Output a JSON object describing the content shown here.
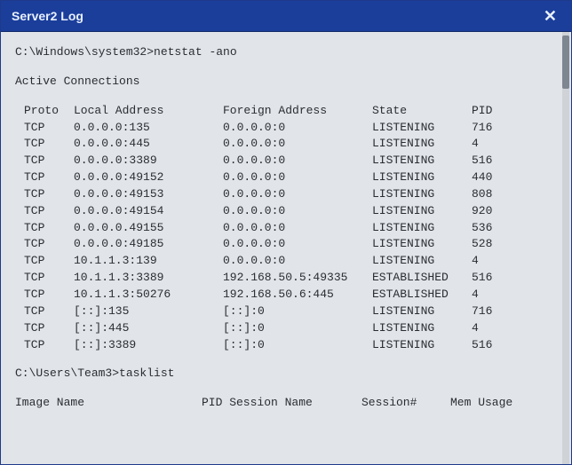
{
  "window": {
    "title": "Server2 Log",
    "close_glyph": "✕"
  },
  "prompt1": {
    "path": "C:\\Windows\\system32>",
    "cmd": "netstat -ano"
  },
  "netstat": {
    "heading": "Active Connections",
    "columns": {
      "proto": "Proto",
      "local": "Local Address",
      "foreign": "Foreign Address",
      "state": "State",
      "pid": "PID"
    },
    "rows": [
      {
        "proto": "TCP",
        "local": "0.0.0.0:135",
        "foreign": "0.0.0.0:0",
        "state": "LISTENING",
        "pid": "716"
      },
      {
        "proto": "TCP",
        "local": "0.0.0.0:445",
        "foreign": "0.0.0.0:0",
        "state": "LISTENING",
        "pid": "4"
      },
      {
        "proto": "TCP",
        "local": "0.0.0.0:3389",
        "foreign": "0.0.0.0:0",
        "state": "LISTENING",
        "pid": "516"
      },
      {
        "proto": "TCP",
        "local": "0.0.0.0:49152",
        "foreign": "0.0.0.0:0",
        "state": "LISTENING",
        "pid": "440"
      },
      {
        "proto": "TCP",
        "local": "0.0.0.0:49153",
        "foreign": "0.0.0.0:0",
        "state": "LISTENING",
        "pid": "808"
      },
      {
        "proto": "TCP",
        "local": "0.0.0.0:49154",
        "foreign": "0.0.0.0:0",
        "state": "LISTENING",
        "pid": "920"
      },
      {
        "proto": "TCP",
        "local": "0.0.0.0.49155",
        "foreign": "0.0.0.0:0",
        "state": "LISTENING",
        "pid": "536"
      },
      {
        "proto": "TCP",
        "local": "0.0.0.0:49185",
        "foreign": "0.0.0.0:0",
        "state": "LISTENING",
        "pid": "528"
      },
      {
        "proto": "TCP",
        "local": "10.1.1.3:139",
        "foreign": "0.0.0.0:0",
        "state": "LISTENING",
        "pid": "4"
      },
      {
        "proto": "TCP",
        "local": "10.1.1.3:3389",
        "foreign": "192.168.50.5:49335",
        "state": "ESTABLISHED",
        "pid": "516"
      },
      {
        "proto": "TCP",
        "local": "10.1.1.3:50276",
        "foreign": "192.168.50.6:445",
        "state": "ESTABLISHED",
        "pid": "4"
      },
      {
        "proto": "TCP",
        "local": "[::]:135",
        "foreign": "[::]:0",
        "state": "LISTENING",
        "pid": "716"
      },
      {
        "proto": "TCP",
        "local": "[::]:445",
        "foreign": "[::]:0",
        "state": "LISTENING",
        "pid": "4"
      },
      {
        "proto": "TCP",
        "local": "[::]:3389",
        "foreign": "[::]:0",
        "state": "LISTENING",
        "pid": "516"
      }
    ]
  },
  "prompt2": {
    "path": "C:\\Users\\Team3>",
    "cmd": "tasklist"
  },
  "tasklist": {
    "columns": {
      "image": "Image Name",
      "pidsess": "PID Session Name",
      "sess": "Session#",
      "mem": "Mem Usage"
    }
  },
  "colors": {
    "titlebar_bg": "#1b3e9b",
    "titlebar_fg": "#e8f0ff",
    "terminal_bg": "#e1e4e8",
    "text": "#2a2e33"
  }
}
